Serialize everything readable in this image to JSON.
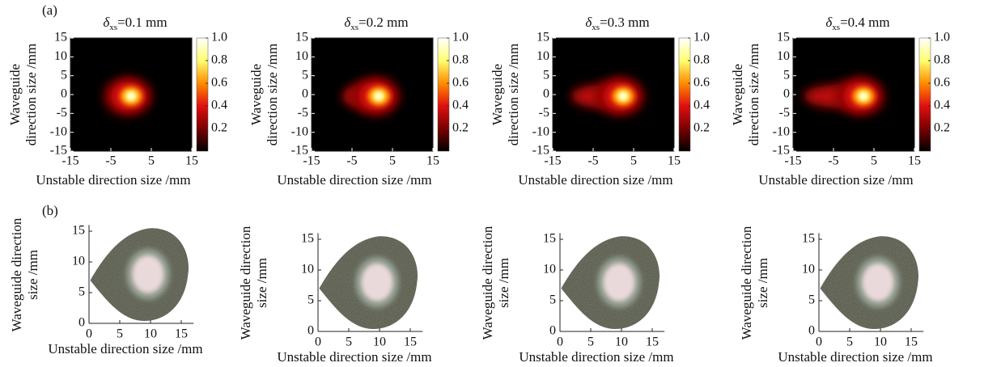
{
  "panel_labels": [
    "(a)",
    "(b)"
  ],
  "chart_data": [
    {
      "type": "heatmap",
      "title": {
        "symbol": "δ",
        "subscript": "xs",
        "text": "=0.1 mm"
      },
      "xlabel": "Unstable direction  size /mm",
      "ylabel": [
        "Waveguide",
        "direction size /mm"
      ],
      "xlim": [
        -15,
        15
      ],
      "xticks": [
        -15,
        -5,
        5,
        15
      ],
      "ylim": [
        -15,
        15
      ],
      "yticks": [
        -15,
        -10,
        -5,
        0,
        5,
        10,
        15
      ],
      "colorbar": {
        "lim": [
          0,
          1
        ],
        "ticks": [
          0.2,
          0.4,
          0.6,
          0.8,
          {
            "value": 1,
            "label": "1.0"
          }
        ],
        "colors": [
          "#000000",
          "#7a0000",
          "#e01010",
          "#ff8c00",
          "#ffff70",
          "#ffffff"
        ]
      }
    },
    {
      "type": "heatmap",
      "title": {
        "symbol": "δ",
        "subscript": "xs",
        "text": "=0.2 mm"
      },
      "xlabel": "Unstable direction  size /mm",
      "ylabel": [
        "Waveguide",
        "direction  size /mm"
      ],
      "xlim": [
        -15,
        15
      ],
      "xticks": [
        -15,
        -5,
        5,
        15
      ],
      "ylim": [
        -15,
        15
      ],
      "yticks": [
        -15,
        -10,
        -5,
        0,
        5,
        10,
        15
      ],
      "colorbar": {
        "lim": [
          0,
          1
        ],
        "ticks": [
          0.2,
          0.4,
          0.6,
          0.8,
          {
            "value": 1,
            "label": "1.0"
          }
        ],
        "colors": [
          "#000000",
          "#7a0000",
          "#e01010",
          "#ff8c00",
          "#ffff70",
          "#ffffff"
        ]
      }
    },
    {
      "type": "heatmap",
      "title": {
        "symbol": "δ",
        "subscript": "xs",
        "text": "=0.3 mm"
      },
      "xlabel": "Unstable direction  size /mm",
      "ylabel": [
        "Waveguide",
        "direction size /mm"
      ],
      "xlim": [
        -15,
        15
      ],
      "xticks": [
        -15,
        -5,
        5,
        15
      ],
      "ylim": [
        -15,
        15
      ],
      "yticks": [
        -15,
        -10,
        -5,
        0,
        5,
        10,
        15
      ],
      "colorbar": {
        "lim": [
          0,
          1
        ],
        "ticks": [
          0.2,
          0.4,
          0.6,
          0.8,
          {
            "value": 1,
            "label": "1.0"
          }
        ],
        "colors": [
          "#000000",
          "#7a0000",
          "#e01010",
          "#ff8c00",
          "#ffff70",
          "#ffffff"
        ]
      }
    },
    {
      "type": "heatmap",
      "title": {
        "symbol": "δ",
        "subscript": "xs",
        "text": "=0.4 mm"
      },
      "xlabel": "Unstable direction  size /mm",
      "ylabel": [
        "Waveguide",
        "direction  size /mm"
      ],
      "xlim": [
        -15,
        15
      ],
      "xticks": [
        -15,
        -5,
        5,
        15
      ],
      "ylim": [
        -15,
        15
      ],
      "yticks": [
        -15,
        -10,
        -5,
        0,
        5,
        10,
        15
      ],
      "colorbar": {
        "lim": [
          0,
          1
        ],
        "ticks": [
          0.2,
          0.4,
          0.6,
          0.8,
          {
            "value": 1,
            "label": "1.0"
          }
        ],
        "colors": [
          "#000000",
          "#7a0000",
          "#e01010",
          "#ff8c00",
          "#ffff70",
          "#ffffff"
        ]
      }
    },
    {
      "type": "photo",
      "xlabel": "Unstable direction size /mm",
      "ylabel": [
        "Waveguide direction",
        "size /mm"
      ],
      "xlim": [
        0,
        17
      ],
      "xticks": [
        0,
        5,
        10,
        15
      ],
      "ylim": [
        0,
        16
      ],
      "yticks": [
        0,
        5,
        10,
        15
      ]
    },
    {
      "type": "photo",
      "xlabel": "Unstable direction size /mm",
      "ylabel": [
        "Waveguide direction",
        "size /mm"
      ],
      "xlim": [
        0,
        17
      ],
      "xticks": [
        0,
        5,
        10,
        15
      ],
      "ylim": [
        0,
        16
      ],
      "yticks": [
        0,
        5,
        10,
        15
      ]
    },
    {
      "type": "photo",
      "xlabel": "Unstable direction size /mm",
      "ylabel": [
        "Waveguide direction",
        "size /mm"
      ],
      "xlim": [
        0,
        17
      ],
      "xticks": [
        0,
        5,
        10,
        15
      ],
      "ylim": [
        0,
        16
      ],
      "yticks": [
        0,
        5,
        10,
        15
      ]
    },
    {
      "type": "photo",
      "xlabel": "Unstable direction size /mm",
      "ylabel": [
        "Waveguide direction",
        "size /mm"
      ],
      "xlim": [
        0,
        17
      ],
      "xticks": [
        0,
        5,
        10,
        15
      ],
      "ylim": [
        0,
        16
      ],
      "yticks": [
        0,
        5,
        10,
        15
      ]
    }
  ]
}
